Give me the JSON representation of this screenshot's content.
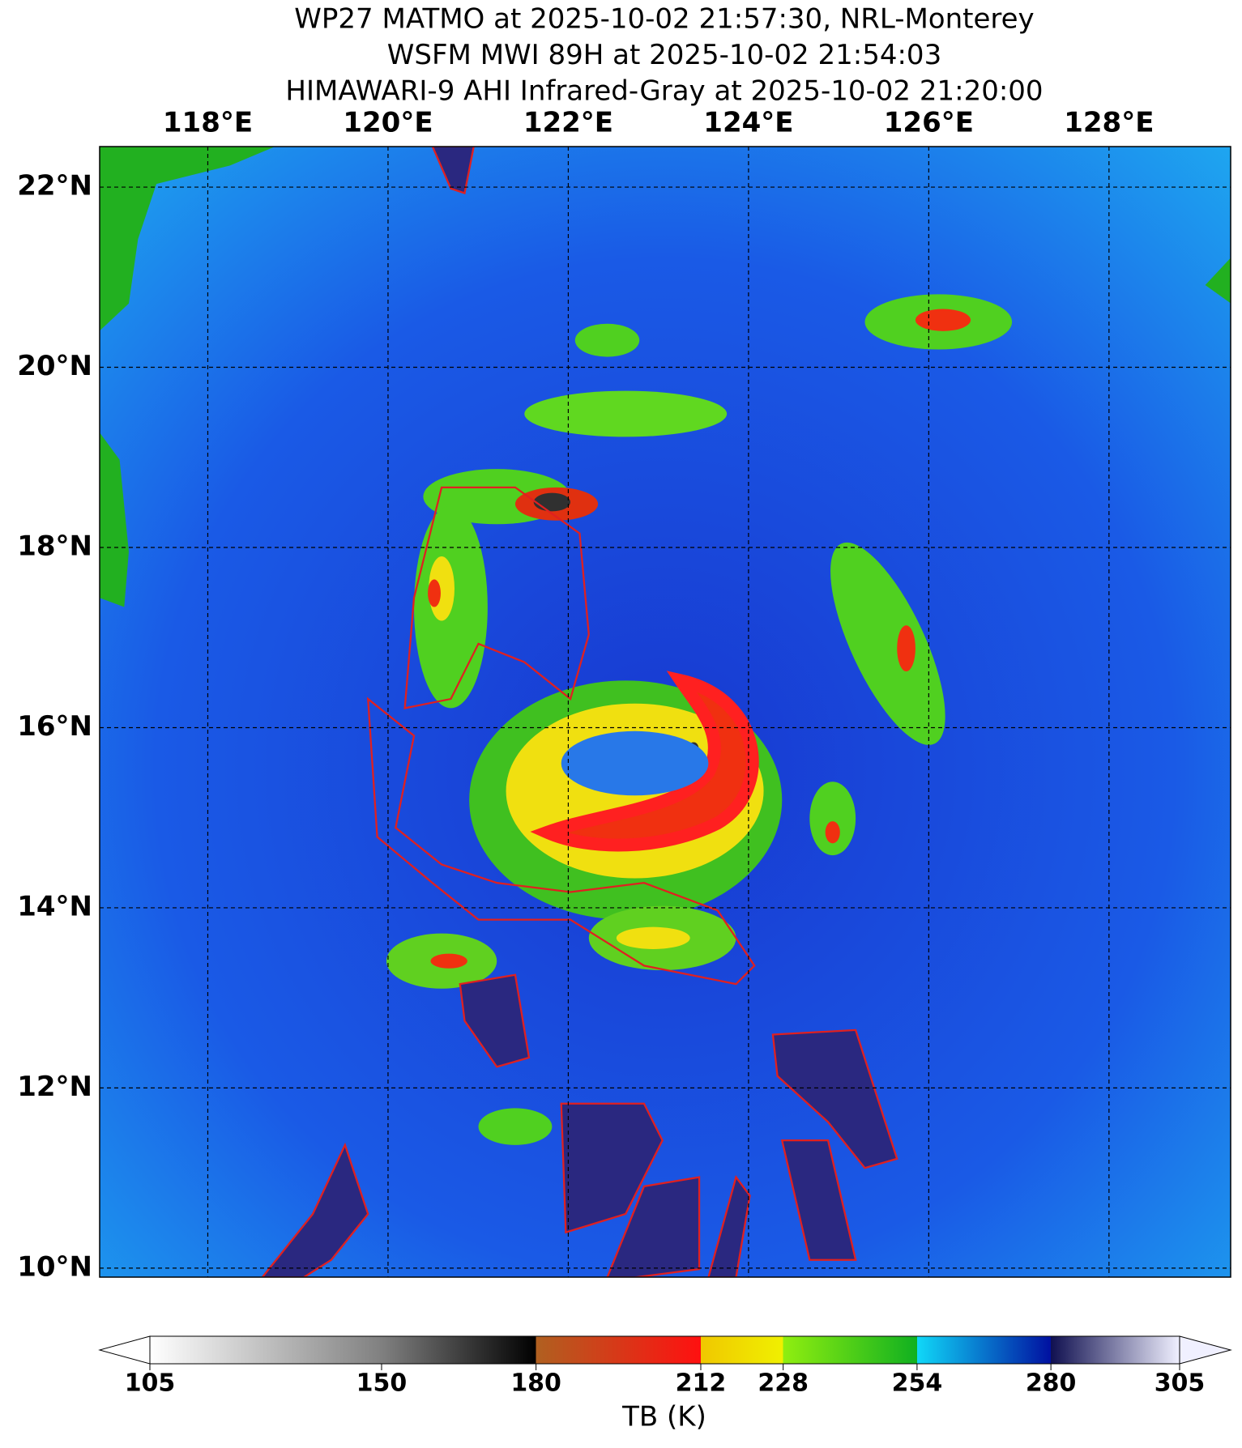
{
  "title": [
    "WP27 MATMO at 2025-10-02 21:57:30, NRL-Monterey",
    "WSFM MWI 89H at 2025-10-02 21:54:03",
    "HIMAWARI-9 AHI Infrared-Gray at 2025-10-02 21:20:00"
  ],
  "map": {
    "xlim": [
      116.8,
      129.35
    ],
    "ylim": [
      9.9,
      22.45
    ],
    "xticks": [
      {
        "value": 118,
        "label": "118°E"
      },
      {
        "value": 120,
        "label": "120°E"
      },
      {
        "value": 122,
        "label": "122°E"
      },
      {
        "value": 124,
        "label": "124°E"
      },
      {
        "value": 126,
        "label": "126°E"
      },
      {
        "value": 128,
        "label": "128°E"
      }
    ],
    "yticks": [
      {
        "value": 10,
        "label": "10°N"
      },
      {
        "value": 12,
        "label": "12°N"
      },
      {
        "value": 14,
        "label": "14°N"
      },
      {
        "value": 16,
        "label": "16°N"
      },
      {
        "value": 18,
        "label": "18°N"
      },
      {
        "value": 20,
        "label": "20°N"
      },
      {
        "value": 22,
        "label": "22°N"
      }
    ]
  },
  "colorbar": {
    "lim": [
      105,
      305
    ],
    "ticks": [
      105,
      150,
      180,
      212,
      228,
      254,
      280,
      305
    ],
    "label": "TB (K)"
  }
}
